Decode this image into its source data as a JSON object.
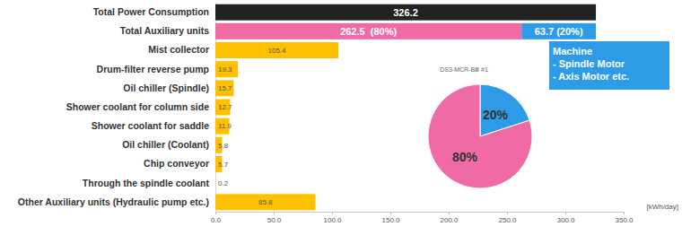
{
  "chart_data": [
    {
      "type": "bar",
      "orientation": "horizontal",
      "stacked": true,
      "data_labels": true,
      "categories": [
        "Total Power Consumption",
        "Total Auxiliary units",
        "Mist collector",
        "Drum-filter reverse pump",
        "Oil chiller (Spindle)",
        "Shower coolant for column side",
        "Shower coolant for saddle",
        "Oil chiller (Coolant)",
        "Chip conveyor",
        "Through the spindle coolant",
        "Other Auxiliary units (Hydraulic pump etc.)"
      ],
      "series": [
        {
          "colors": [
            "#222222",
            "#f06aa6",
            "#ffc000",
            "#ffc000",
            "#ffc000",
            "#ffc000",
            "#ffc000",
            "#ffc000",
            "#ffc000",
            "#ffc000",
            "#ffc000"
          ],
          "values": [
            326.2,
            262.5,
            105.4,
            19.3,
            15.7,
            12.7,
            11.9,
            5.8,
            5.7,
            0.2,
            85.8
          ],
          "value_labels": [
            "326.2",
            "262.5  (80%)",
            "105.4",
            "19.3",
            "15.7",
            "12.7",
            "11.9",
            "5.8",
            "5.7",
            "0.2",
            "85.8"
          ]
        },
        {
          "color": "#2e9be6",
          "values": [
            null,
            63.7,
            null,
            null,
            null,
            null,
            null,
            null,
            null,
            null,
            null
          ],
          "value_labels": [
            null,
            "63.7 (20%)",
            null,
            null,
            null,
            null,
            null,
            null,
            null,
            null,
            null
          ]
        }
      ],
      "xlim": [
        0,
        350
      ],
      "xticks": [
        {
          "value": 0,
          "label": "0.0"
        },
        {
          "value": 50,
          "label": "50.0"
        },
        {
          "value": 100,
          "label": "100.0"
        },
        {
          "value": 150,
          "label": "150.0"
        },
        {
          "value": 200,
          "label": "200.0"
        },
        {
          "value": 250,
          "label": "250.0"
        },
        {
          "value": 300,
          "label": "300.0"
        },
        {
          "value": 350,
          "label": "350.0"
        }
      ],
      "x_label": "[kWh/day]",
      "annotations": [
        "Machine",
        "- Spindle Motor",
        "- Axis Motor etc."
      ]
    },
    {
      "type": "pie",
      "title": "DS3-MCR-BⅢ #1",
      "values": [
        20,
        80
      ],
      "colors": [
        "#2e9be6",
        "#f06aa6"
      ],
      "data_labels": true,
      "value_labels": [
        "20%",
        "80%"
      ]
    }
  ]
}
